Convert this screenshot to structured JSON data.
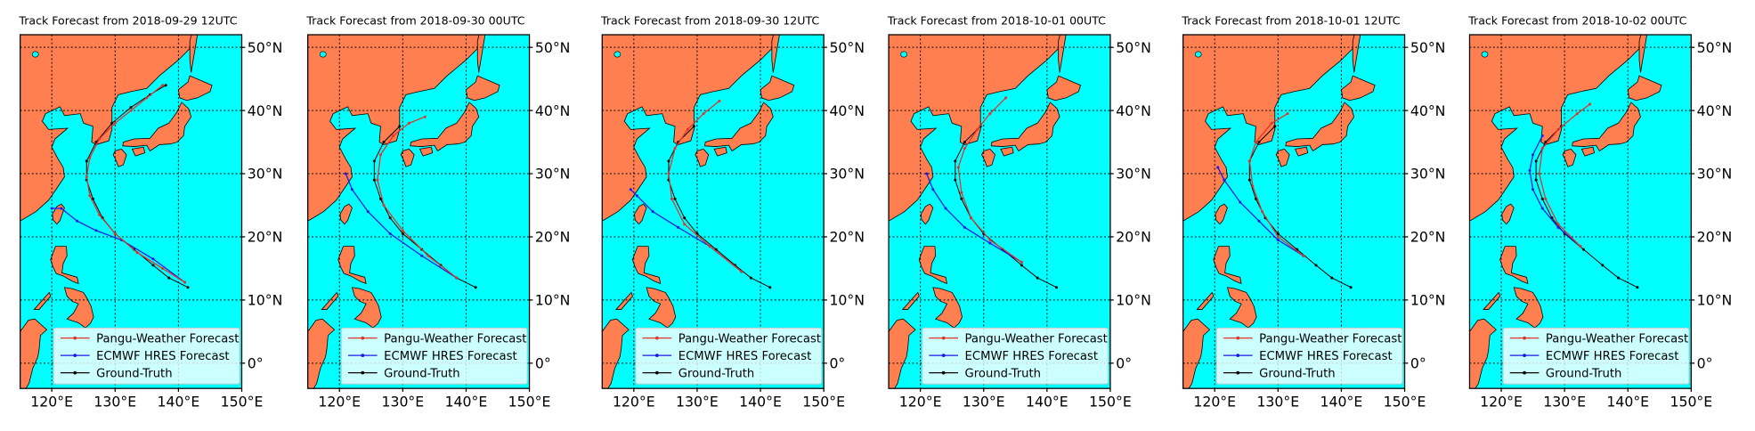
{
  "chart_data": [
    {
      "type": "map",
      "title": "Track Forecast from 2018-09-29 12UTC",
      "grid": true,
      "legend": "lower center",
      "xlim": [
        115,
        150
      ],
      "ylim": [
        -4,
        52
      ],
      "xticks": [
        {
          "value": 120,
          "label": "120°E"
        },
        {
          "value": 130,
          "label": "130°E"
        },
        {
          "value": 140,
          "label": "140°E"
        },
        {
          "value": 150,
          "label": "150°E"
        }
      ],
      "yticks": [
        {
          "value": 0,
          "label": "0°"
        },
        {
          "value": 10,
          "label": "10°N"
        },
        {
          "value": 20,
          "label": "20°N"
        },
        {
          "value": 30,
          "label": "30°N"
        },
        {
          "value": 40,
          "label": "40°N"
        },
        {
          "value": 50,
          "label": "50°N"
        }
      ],
      "series": [
        {
          "name": "Pangu-Weather Forecast",
          "color": "#e03428",
          "x": [
            141,
            137.5,
            133.5,
            130,
            127.5,
            126,
            125.5,
            126,
            127.5,
            130,
            132.5,
            135,
            137.5
          ],
          "values": [
            12.8,
            15,
            17.5,
            20.5,
            23.5,
            26.5,
            29.5,
            32.5,
            35.5,
            38,
            40,
            42,
            44
          ]
        },
        {
          "name": "ECMWF HRES Forecast",
          "color": "#1a1ae6",
          "x": [
            141,
            136,
            131,
            127,
            124,
            121.5,
            120
          ],
          "values": [
            12.8,
            16.5,
            19.5,
            21,
            22.5,
            24.5,
            24.5
          ]
        },
        {
          "name": "Ground-Truth",
          "color": "#000000",
          "x": [
            141.5,
            138.5,
            136,
            133,
            130,
            128,
            126.5,
            125.5,
            125.5,
            127,
            129.5,
            132.5,
            135.5,
            138
          ],
          "values": [
            12,
            13.5,
            15.5,
            18,
            20.5,
            23,
            26,
            29,
            32,
            35,
            38,
            40.5,
            42.5,
            44
          ]
        }
      ]
    },
    {
      "type": "map",
      "title": "Track Forecast from 2018-09-30 00UTC",
      "grid": true,
      "legend": "lower center",
      "xlim": [
        115,
        150
      ],
      "ylim": [
        -4,
        52
      ],
      "xticks": [
        {
          "value": 120,
          "label": "120°E"
        },
        {
          "value": 130,
          "label": "130°E"
        },
        {
          "value": 140,
          "label": "140°E"
        },
        {
          "value": 150,
          "label": "150°E"
        }
      ],
      "yticks": [
        {
          "value": 0,
          "label": "0°"
        },
        {
          "value": 10,
          "label": "10°N"
        },
        {
          "value": 20,
          "label": "20°N"
        },
        {
          "value": 30,
          "label": "30°N"
        },
        {
          "value": 40,
          "label": "40°N"
        },
        {
          "value": 50,
          "label": "50°N"
        }
      ],
      "series": [
        {
          "name": "Pangu-Weather Forecast",
          "color": "#e03428",
          "x": [
            138.5,
            134,
            130,
            127,
            126,
            126.5,
            128.5,
            131,
            133.5
          ],
          "values": [
            13.5,
            17,
            21,
            25,
            29,
            33,
            36,
            38,
            39
          ]
        },
        {
          "name": "ECMWF HRES Forecast",
          "color": "#1a1ae6",
          "x": [
            138.5,
            133,
            128,
            124.5,
            122,
            121
          ],
          "values": [
            13.5,
            17,
            20.5,
            24,
            27.5,
            30
          ]
        },
        {
          "name": "Ground-Truth",
          "color": "#000000",
          "x": [
            141.5,
            138.5,
            136,
            133,
            130,
            128,
            126.5,
            125.5,
            125.5,
            127,
            129.5
          ],
          "values": [
            12,
            13.5,
            15.5,
            18,
            20.5,
            23,
            26,
            29,
            32,
            35,
            37.5
          ]
        }
      ]
    },
    {
      "type": "map",
      "title": "Track Forecast from 2018-09-30 12UTC",
      "grid": true,
      "legend": "lower center",
      "xlim": [
        115,
        150
      ],
      "ylim": [
        -4,
        52
      ],
      "xticks": [
        {
          "value": 120,
          "label": "120°E"
        },
        {
          "value": 130,
          "label": "130°E"
        },
        {
          "value": 140,
          "label": "140°E"
        },
        {
          "value": 150,
          "label": "150°E"
        }
      ],
      "yticks": [
        {
          "value": 0,
          "label": "0°"
        },
        {
          "value": 10,
          "label": "10°N"
        },
        {
          "value": 20,
          "label": "20°N"
        },
        {
          "value": 30,
          "label": "30°N"
        },
        {
          "value": 40,
          "label": "40°N"
        },
        {
          "value": 50,
          "label": "50°N"
        }
      ],
      "series": [
        {
          "name": "Pangu-Weather Forecast",
          "color": "#e03428",
          "x": [
            137,
            132,
            128,
            126,
            125.5,
            126.5,
            128.5,
            131,
            133.5
          ],
          "values": [
            14.5,
            18.5,
            22,
            26,
            30,
            34,
            37,
            39.5,
            41.5
          ]
        },
        {
          "name": "ECMWF HRES Forecast",
          "color": "#1a1ae6",
          "x": [
            137,
            132,
            127,
            123,
            120.5,
            119.5
          ],
          "values": [
            14.5,
            18.5,
            21.5,
            24,
            26.5,
            27.5
          ]
        },
        {
          "name": "Ground-Truth",
          "color": "#000000",
          "x": [
            141.5,
            138.5,
            136,
            133,
            130,
            128,
            126.5,
            125.5,
            125.5,
            127,
            129.5
          ],
          "values": [
            12,
            13.5,
            15.5,
            18,
            20.5,
            23,
            26,
            29,
            32,
            35,
            37.5
          ]
        }
      ]
    },
    {
      "type": "map",
      "title": "Track Forecast from 2018-10-01 00UTC",
      "grid": true,
      "legend": "lower center",
      "xlim": [
        115,
        150
      ],
      "ylim": [
        -4,
        52
      ],
      "xticks": [
        {
          "value": 120,
          "label": "120°E"
        },
        {
          "value": 130,
          "label": "130°E"
        },
        {
          "value": 140,
          "label": "140°E"
        },
        {
          "value": 150,
          "label": "150°E"
        }
      ],
      "yticks": [
        {
          "value": 0,
          "label": "0°"
        },
        {
          "value": 10,
          "label": "10°N"
        },
        {
          "value": 20,
          "label": "20°N"
        },
        {
          "value": 30,
          "label": "30°N"
        },
        {
          "value": 40,
          "label": "40°N"
        },
        {
          "value": 50,
          "label": "50°N"
        }
      ],
      "series": [
        {
          "name": "Pangu-Weather Forecast",
          "color": "#e03428",
          "x": [
            136,
            131,
            128,
            126.5,
            126,
            127,
            129,
            131,
            133.5
          ],
          "values": [
            16,
            19.5,
            23,
            27,
            31,
            34,
            37,
            39.5,
            42
          ]
        },
        {
          "name": "ECMWF HRES Forecast",
          "color": "#1a1ae6",
          "x": [
            136,
            131,
            127,
            124,
            122,
            121
          ],
          "values": [
            16,
            19,
            21.5,
            24.5,
            27.5,
            30
          ]
        },
        {
          "name": "Ground-Truth",
          "color": "#000000",
          "x": [
            141.5,
            138.5,
            136,
            133,
            130,
            128,
            126.5,
            125.5,
            125.5,
            127,
            129.5
          ],
          "values": [
            12,
            13.5,
            15.5,
            18,
            20.5,
            23,
            26,
            29,
            32,
            35,
            37.5
          ]
        }
      ]
    },
    {
      "type": "map",
      "title": "Track Forecast from 2018-10-01 12UTC",
      "grid": true,
      "legend": "lower center",
      "xlim": [
        115,
        150
      ],
      "ylim": [
        -4,
        52
      ],
      "xticks": [
        {
          "value": 120,
          "label": "120°E"
        },
        {
          "value": 130,
          "label": "130°E"
        },
        {
          "value": 140,
          "label": "140°E"
        },
        {
          "value": 150,
          "label": "150°E"
        }
      ],
      "yticks": [
        {
          "value": 0,
          "label": "0°"
        },
        {
          "value": 10,
          "label": "10°N"
        },
        {
          "value": 20,
          "label": "20°N"
        },
        {
          "value": 30,
          "label": "30°N"
        },
        {
          "value": 40,
          "label": "40°N"
        },
        {
          "value": 50,
          "label": "50°N"
        }
      ],
      "series": [
        {
          "name": "Pangu-Weather Forecast",
          "color": "#e03428",
          "x": [
            134,
            130,
            127.5,
            126,
            125.5,
            126.5,
            129,
            131.5
          ],
          "values": [
            17,
            20,
            24,
            28,
            32,
            35,
            38,
            39.5
          ]
        },
        {
          "name": "ECMWF HRES Forecast",
          "color": "#1a1ae6",
          "x": [
            134,
            130,
            127,
            124,
            121.5,
            120.5
          ],
          "values": [
            17,
            19.5,
            22.5,
            25.5,
            29,
            31
          ]
        },
        {
          "name": "Ground-Truth",
          "color": "#000000",
          "x": [
            141.5,
            138.5,
            136,
            133,
            130,
            128,
            126.5,
            125.5,
            125.5,
            127,
            129.5
          ],
          "values": [
            12,
            13.5,
            15.5,
            18,
            20.5,
            23,
            26,
            29,
            32,
            35,
            37.5
          ]
        }
      ]
    },
    {
      "type": "map",
      "title": "Track Forecast from 2018-10-02 00UTC",
      "grid": true,
      "legend": "lower center",
      "xlim": [
        115,
        150
      ],
      "ylim": [
        -4,
        52
      ],
      "xticks": [
        {
          "value": 120,
          "label": "120°E"
        },
        {
          "value": 130,
          "label": "130°E"
        },
        {
          "value": 140,
          "label": "140°E"
        },
        {
          "value": 150,
          "label": "150°E"
        }
      ],
      "yticks": [
        {
          "value": 0,
          "label": "0°"
        },
        {
          "value": 10,
          "label": "10°N"
        },
        {
          "value": 20,
          "label": "20°N"
        },
        {
          "value": 30,
          "label": "30°N"
        },
        {
          "value": 40,
          "label": "40°N"
        },
        {
          "value": 50,
          "label": "50°N"
        }
      ],
      "series": [
        {
          "name": "Pangu-Weather Forecast",
          "color": "#e03428",
          "x": [
            132.5,
            129,
            127,
            126,
            126.5,
            129,
            132,
            134
          ],
          "values": [
            18.5,
            22,
            26,
            30,
            34,
            37,
            39.5,
            41
          ]
        },
        {
          "name": "ECMWF HRES Forecast",
          "color": "#1a1ae6",
          "x": [
            132.5,
            129,
            126.5,
            125,
            124.5,
            125,
            126.5
          ],
          "values": [
            18.5,
            21.5,
            24.5,
            27.5,
            30.5,
            33,
            36
          ]
        },
        {
          "name": "Ground-Truth",
          "color": "#000000",
          "x": [
            141.5,
            138.5,
            136,
            133,
            130,
            128,
            126.5,
            125.5,
            125.5,
            127,
            129.5
          ],
          "values": [
            12,
            13.5,
            15.5,
            18,
            20.5,
            23,
            26,
            29,
            32,
            35,
            37.5
          ]
        }
      ]
    }
  ]
}
